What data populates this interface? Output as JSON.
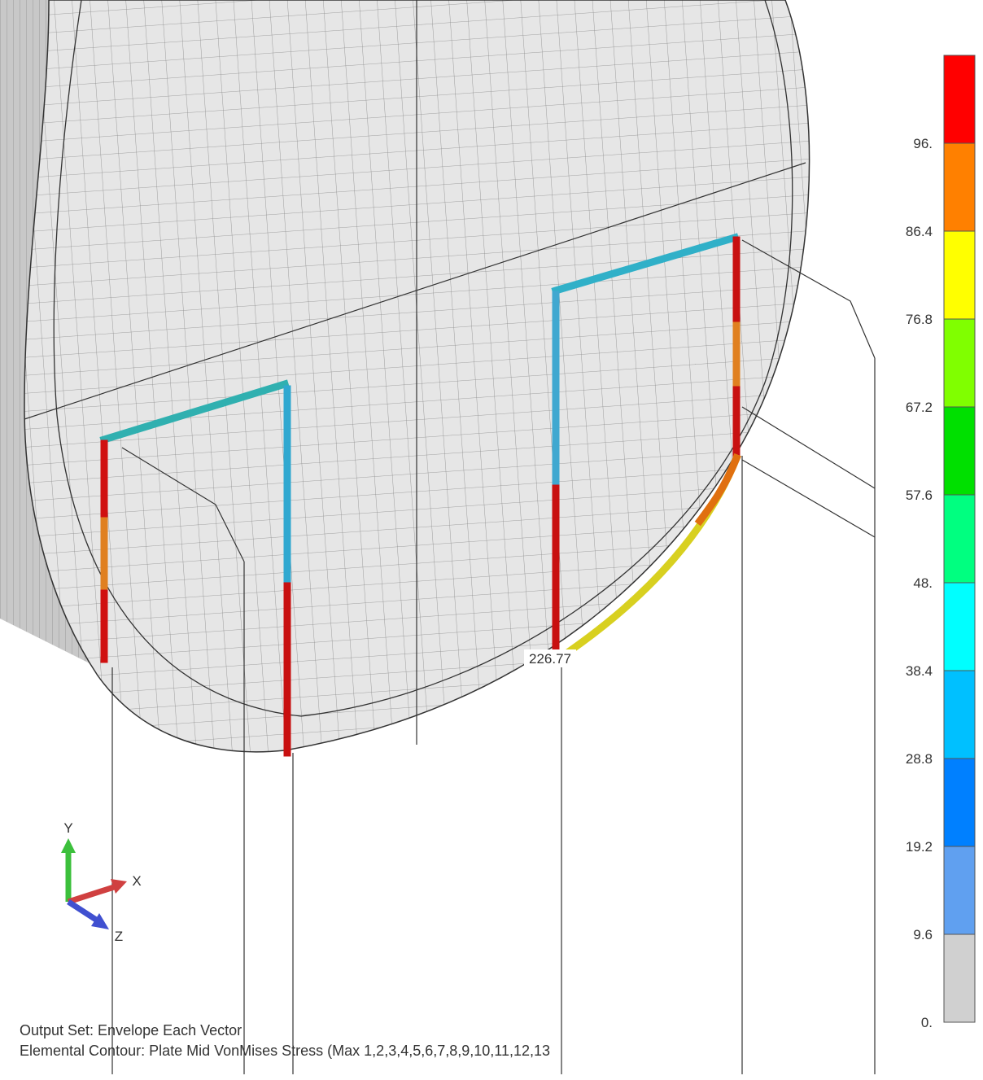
{
  "legend": {
    "labels": [
      "96.",
      "86.4",
      "76.8",
      "67.2",
      "57.6",
      "48.",
      "38.4",
      "28.8",
      "19.2",
      "9.6",
      "0."
    ],
    "colors": [
      "#ff0000",
      "#ff8000",
      "#ffff00",
      "#80ff00",
      "#00e000",
      "#00ff80",
      "#00ffff",
      "#00c0ff",
      "#0080ff",
      "#60a0f0",
      "#d0d0d0"
    ]
  },
  "max_label": "226.77",
  "triad": {
    "y": "Y",
    "x": "X",
    "z": "Z"
  },
  "footer": {
    "line1": "Output Set: Envelope Each Vector",
    "line2": "Elemental Contour: Plate Mid VonMises Stress (Max 1,2,3,4,5,6,7,8,9,10,11,12,13"
  }
}
